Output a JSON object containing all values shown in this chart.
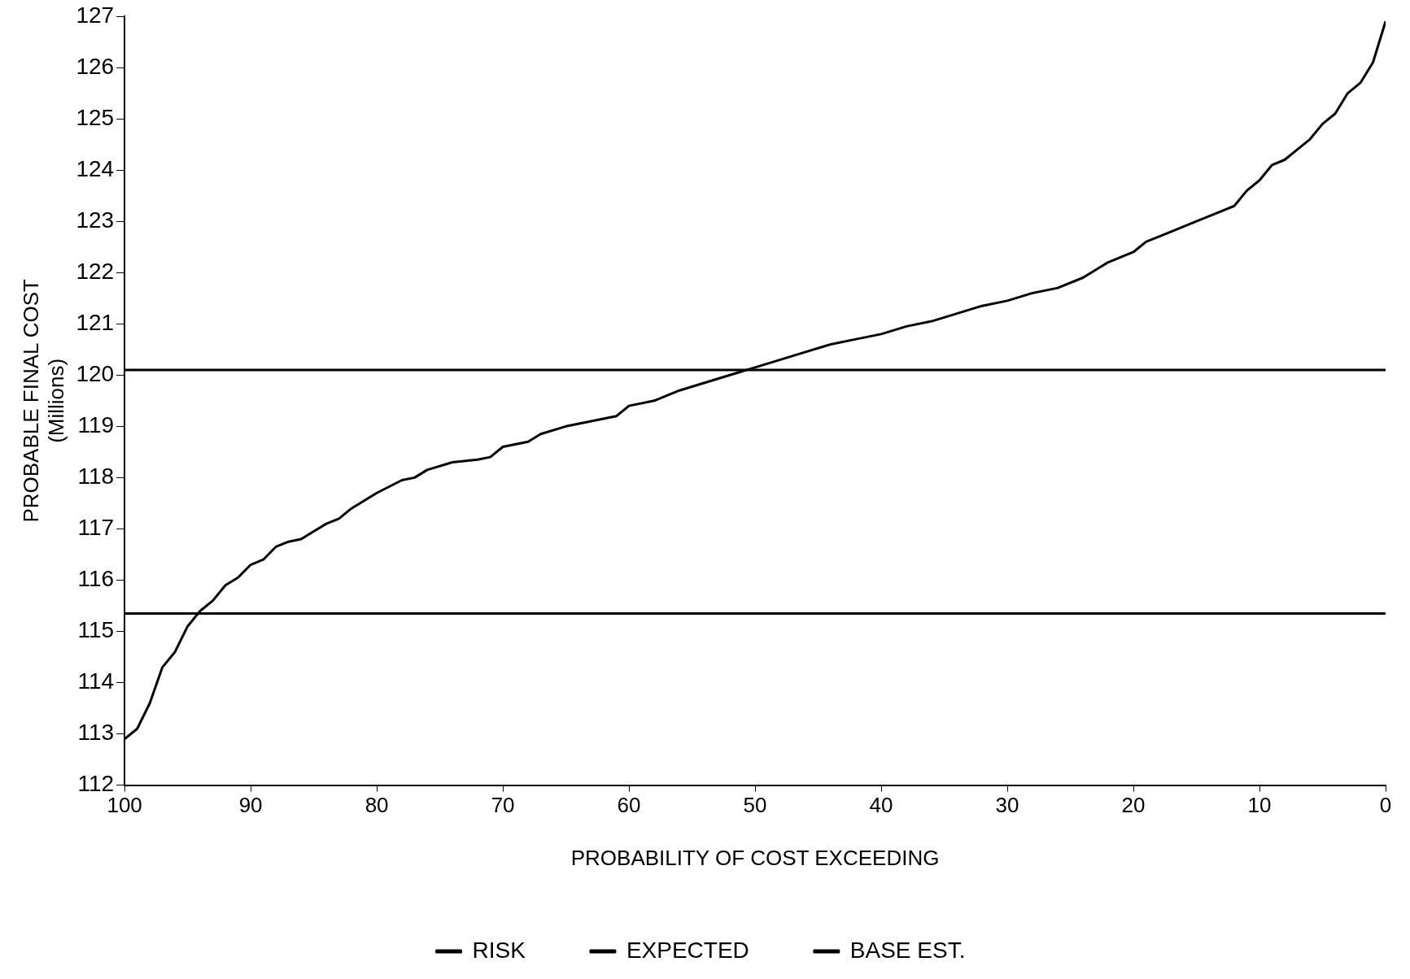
{
  "chart_data": {
    "type": "line",
    "xlabel": "PROBABILITY OF COST EXCEEDING",
    "ylabel": "PROBABLE FINAL COST\n(Millions)",
    "xlim": [
      100,
      0
    ],
    "xticks": [
      100,
      90,
      80,
      70,
      60,
      50,
      40,
      30,
      20,
      10,
      0
    ],
    "ylim": [
      112,
      127
    ],
    "yticks": [
      112,
      113,
      114,
      115,
      116,
      117,
      118,
      119,
      120,
      121,
      122,
      123,
      124,
      125,
      126,
      127
    ],
    "grid": false,
    "legend": "bottom",
    "marker": "none",
    "line_style": "solid",
    "series": [
      {
        "name": "RISK",
        "color": "#000000",
        "x": [
          100,
          99,
          98,
          97,
          96,
          95,
          94,
          93,
          92,
          91,
          90,
          89,
          88,
          87,
          86,
          85,
          84,
          83,
          82,
          80,
          78,
          77,
          76,
          74,
          72,
          71,
          70,
          68,
          67,
          65,
          63,
          61,
          60,
          58,
          56,
          54,
          52,
          50,
          48,
          46,
          44,
          42,
          40,
          38,
          36,
          34,
          32,
          30,
          28,
          26,
          24,
          22,
          20,
          19,
          17,
          15,
          14,
          12,
          11,
          10,
          9,
          8,
          7,
          6,
          5,
          4,
          3,
          2,
          1,
          0
        ],
        "values": [
          112.9,
          113.1,
          113.6,
          114.3,
          114.6,
          115.1,
          115.4,
          115.6,
          115.9,
          116.05,
          116.3,
          116.4,
          116.65,
          116.75,
          116.8,
          116.95,
          117.1,
          117.2,
          117.4,
          117.7,
          117.95,
          118,
          118.15,
          118.3,
          118.35,
          118.4,
          118.6,
          118.7,
          118.85,
          119,
          119.1,
          119.2,
          119.4,
          119.5,
          119.7,
          119.85,
          120,
          120.15,
          120.3,
          120.45,
          120.6,
          120.7,
          120.8,
          120.95,
          121.05,
          121.2,
          121.35,
          121.45,
          121.6,
          121.7,
          121.9,
          122.2,
          122.4,
          122.6,
          122.8,
          123,
          123.1,
          123.3,
          123.6,
          123.8,
          124.1,
          124.2,
          124.4,
          124.6,
          124.9,
          125.1,
          125.5,
          125.7,
          126.1,
          126.9
        ]
      },
      {
        "name": "EXPECTED",
        "color": "#000000",
        "x": [
          100,
          0
        ],
        "values": [
          120.1,
          120.1
        ]
      },
      {
        "name": "BASE EST.",
        "color": "#000000",
        "x": [
          100,
          0
        ],
        "values": [
          115.35,
          115.35
        ]
      }
    ]
  }
}
